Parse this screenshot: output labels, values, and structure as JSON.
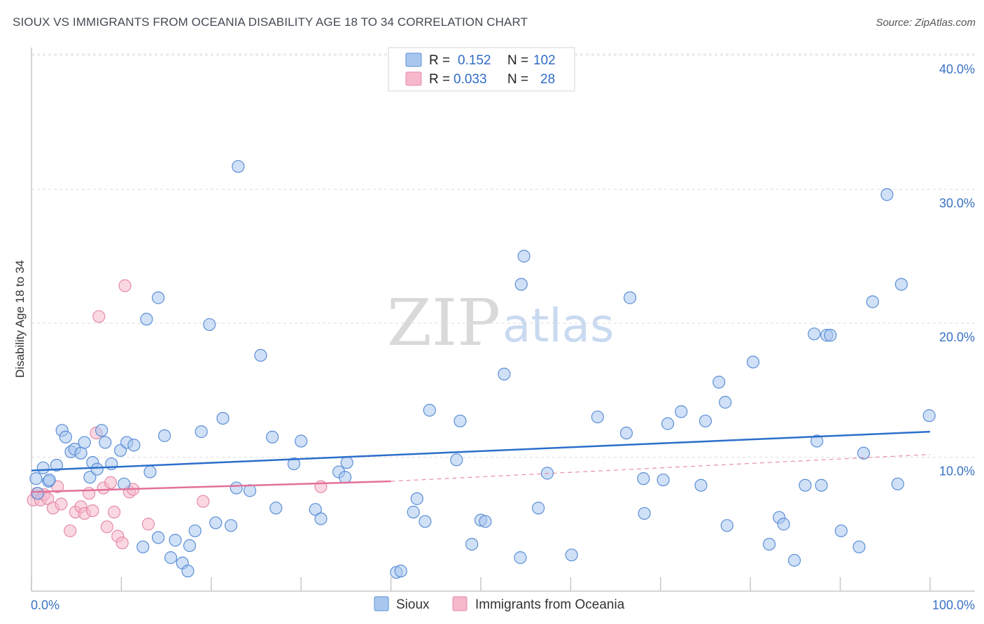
{
  "title": "SIOUX VS IMMIGRANTS FROM OCEANIA DISABILITY AGE 18 TO 34 CORRELATION CHART",
  "source": "Source: ZipAtlas.com",
  "watermark": {
    "zip": "ZIP",
    "atlas": "atlas"
  },
  "legend": {
    "rows": [
      {
        "r_label": "R =",
        "r_value": "0.152",
        "n_label": "N =",
        "n_value": "102"
      },
      {
        "r_label": "R =",
        "r_value": "0.033",
        "n_label": "N =",
        "n_value": "28"
      }
    ]
  },
  "bottom_legend": [
    "Sioux",
    "Immigrants from Oceania"
  ],
  "colors": {
    "sioux_fill": "#a9c7ee",
    "sioux_stroke": "#5b8fd6",
    "sioux_line": "#2b6fcb",
    "oceania_fill": "#f6b8cb",
    "oceania_stroke": "#e58aa8",
    "oceania_line": "#e2709a",
    "grid": "#dcdcdc",
    "tick_text": "#3a72c4"
  },
  "chart_data": {
    "type": "scatter",
    "title": "SIOUX VS IMMIGRANTS FROM OCEANIA DISABILITY AGE 18 TO 34 CORRELATION CHART",
    "xlabel": "",
    "ylabel": "Disability Age 18 to 34",
    "xlim": [
      0,
      100
    ],
    "ylim": [
      0,
      42
    ],
    "x_tick_labels": [
      "0.0%",
      "100.0%"
    ],
    "y_ticks": [
      10,
      20,
      30,
      40
    ],
    "y_tick_labels": [
      "10.0%",
      "20.0%",
      "30.0%",
      "40.0%"
    ],
    "grid": true,
    "legend_position": "top-center",
    "series": [
      {
        "name": "Sioux",
        "r": 0.152,
        "n": 102,
        "trend": {
          "x": [
            0,
            100
          ],
          "y": [
            9.0,
            11.9
          ],
          "style": "solid"
        },
        "points": [
          [
            0.5,
            8.4
          ],
          [
            1.3,
            9.2
          ],
          [
            1.9,
            8.2
          ],
          [
            2.8,
            9.4
          ],
          [
            3.4,
            12.0
          ],
          [
            3.8,
            11.5
          ],
          [
            4.4,
            10.4
          ],
          [
            4.8,
            10.6
          ],
          [
            5.5,
            10.3
          ],
          [
            5.9,
            11.1
          ],
          [
            6.5,
            8.5
          ],
          [
            6.8,
            9.6
          ],
          [
            7.3,
            9.1
          ],
          [
            7.8,
            12.0
          ],
          [
            8.2,
            11.1
          ],
          [
            8.9,
            9.5
          ],
          [
            9.9,
            10.5
          ],
          [
            10.3,
            8.0
          ],
          [
            10.6,
            11.1
          ],
          [
            11.4,
            10.9
          ],
          [
            12.4,
            3.3
          ],
          [
            12.8,
            20.3
          ],
          [
            13.2,
            8.9
          ],
          [
            14.1,
            21.9
          ],
          [
            14.1,
            4.0
          ],
          [
            14.8,
            11.6
          ],
          [
            15.5,
            2.5
          ],
          [
            16.0,
            3.8
          ],
          [
            16.8,
            2.1
          ],
          [
            17.4,
            1.5
          ],
          [
            17.6,
            3.4
          ],
          [
            18.2,
            4.5
          ],
          [
            18.9,
            11.9
          ],
          [
            19.8,
            19.9
          ],
          [
            20.5,
            5.1
          ],
          [
            21.3,
            12.9
          ],
          [
            22.2,
            4.9
          ],
          [
            22.8,
            7.7
          ],
          [
            23.0,
            31.7
          ],
          [
            24.3,
            7.5
          ],
          [
            25.5,
            17.6
          ],
          [
            26.8,
            11.5
          ],
          [
            27.2,
            6.2
          ],
          [
            29.2,
            9.5
          ],
          [
            30.0,
            11.2
          ],
          [
            31.6,
            6.1
          ],
          [
            32.2,
            5.4
          ],
          [
            34.2,
            8.9
          ],
          [
            34.9,
            8.5
          ],
          [
            35.1,
            9.6
          ],
          [
            40.6,
            1.4
          ],
          [
            41.1,
            1.5
          ],
          [
            42.5,
            5.9
          ],
          [
            42.9,
            6.9
          ],
          [
            43.8,
            5.2
          ],
          [
            44.3,
            13.5
          ],
          [
            47.3,
            9.8
          ],
          [
            47.7,
            12.7
          ],
          [
            49.0,
            3.5
          ],
          [
            50.0,
            5.3
          ],
          [
            50.5,
            5.2
          ],
          [
            52.6,
            16.2
          ],
          [
            54.4,
            2.5
          ],
          [
            56.4,
            6.2
          ],
          [
            57.4,
            8.8
          ],
          [
            54.5,
            22.9
          ],
          [
            54.8,
            25.0
          ],
          [
            60.1,
            2.7
          ],
          [
            63.0,
            13.0
          ],
          [
            66.2,
            11.8
          ],
          [
            66.6,
            21.9
          ],
          [
            68.1,
            8.4
          ],
          [
            68.2,
            5.8
          ],
          [
            70.3,
            8.3
          ],
          [
            70.8,
            12.5
          ],
          [
            72.3,
            13.4
          ],
          [
            74.5,
            7.9
          ],
          [
            75.0,
            12.7
          ],
          [
            76.5,
            15.6
          ],
          [
            77.2,
            14.1
          ],
          [
            77.4,
            4.9
          ],
          [
            80.3,
            17.1
          ],
          [
            82.1,
            3.5
          ],
          [
            83.2,
            5.5
          ],
          [
            83.7,
            5.0
          ],
          [
            84.9,
            2.3
          ],
          [
            86.1,
            7.9
          ],
          [
            87.1,
            19.2
          ],
          [
            87.4,
            11.2
          ],
          [
            87.9,
            7.9
          ],
          [
            88.5,
            19.1
          ],
          [
            88.9,
            19.1
          ],
          [
            90.1,
            4.5
          ],
          [
            92.1,
            3.3
          ],
          [
            92.6,
            10.3
          ],
          [
            93.6,
            21.6
          ],
          [
            95.2,
            29.6
          ],
          [
            96.4,
            8.0
          ],
          [
            96.8,
            22.9
          ],
          [
            99.9,
            13.1
          ],
          [
            0.7,
            7.3
          ],
          [
            2.0,
            8.3
          ]
        ]
      },
      {
        "name": "Immigrants from Oceania",
        "r": 0.033,
        "n": 28,
        "trend": {
          "x": [
            0,
            40
          ],
          "y": [
            7.4,
            8.2
          ],
          "style": "solid",
          "extended": {
            "x": [
              40,
              100
            ],
            "y": [
              8.2,
              10.2
            ],
            "style": "dashed"
          }
        },
        "points": [
          [
            0.2,
            6.8
          ],
          [
            0.6,
            7.3
          ],
          [
            1.0,
            6.8
          ],
          [
            1.4,
            7.2
          ],
          [
            1.8,
            6.9
          ],
          [
            2.4,
            6.2
          ],
          [
            2.9,
            7.8
          ],
          [
            3.3,
            6.5
          ],
          [
            4.3,
            4.5
          ],
          [
            4.9,
            5.9
          ],
          [
            5.5,
            6.3
          ],
          [
            5.9,
            5.8
          ],
          [
            6.4,
            7.3
          ],
          [
            6.8,
            6.0
          ],
          [
            7.2,
            11.8
          ],
          [
            7.5,
            20.5
          ],
          [
            8.0,
            7.7
          ],
          [
            8.4,
            4.8
          ],
          [
            8.8,
            8.1
          ],
          [
            9.2,
            5.9
          ],
          [
            9.6,
            4.1
          ],
          [
            10.1,
            3.6
          ],
          [
            10.4,
            22.8
          ],
          [
            10.9,
            7.4
          ],
          [
            11.3,
            7.6
          ],
          [
            13.0,
            5.0
          ],
          [
            19.1,
            6.7
          ],
          [
            32.2,
            7.8
          ]
        ]
      }
    ]
  }
}
